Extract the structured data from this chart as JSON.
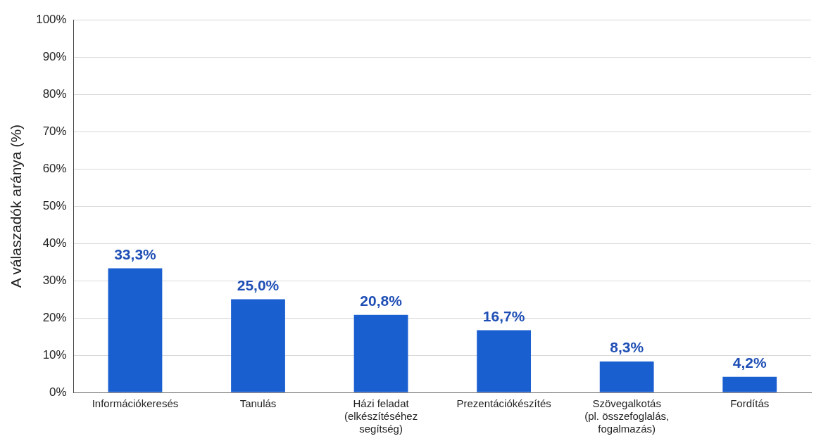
{
  "chart_data": {
    "type": "bar",
    "ylabel": "A válaszadók aránya (%)",
    "categories": [
      "Információkeresés",
      "Tanulás",
      "Házi feladat\n(elkészítéséhez\nsegítség)",
      "Prezentációkészítés",
      "Szövegalkotás\n(pl. összefoglalás,\nfogalmazás)",
      "Fordítás"
    ],
    "values": [
      33.3,
      25.0,
      20.8,
      16.7,
      8.3,
      4.2
    ],
    "value_labels": [
      "33,3%",
      "25,0%",
      "20,8%",
      "16,7%",
      "8,3%",
      "4,2%"
    ],
    "color": "#1a5fd0",
    "ylim": [
      0,
      100
    ],
    "yticks": [
      {
        "value": 0,
        "label": "0%"
      },
      {
        "value": 10,
        "label": "10%"
      },
      {
        "value": 20,
        "label": "20%"
      },
      {
        "value": 30,
        "label": "30%"
      },
      {
        "value": 40,
        "label": "40%"
      },
      {
        "value": 50,
        "label": "50%"
      },
      {
        "value": 60,
        "label": "60%"
      },
      {
        "value": 70,
        "label": "70%"
      },
      {
        "value": 80,
        "label": "80%"
      },
      {
        "value": 90,
        "label": "90%"
      },
      {
        "value": 100,
        "label": "100%"
      }
    ],
    "grid": "y",
    "legend": false
  }
}
